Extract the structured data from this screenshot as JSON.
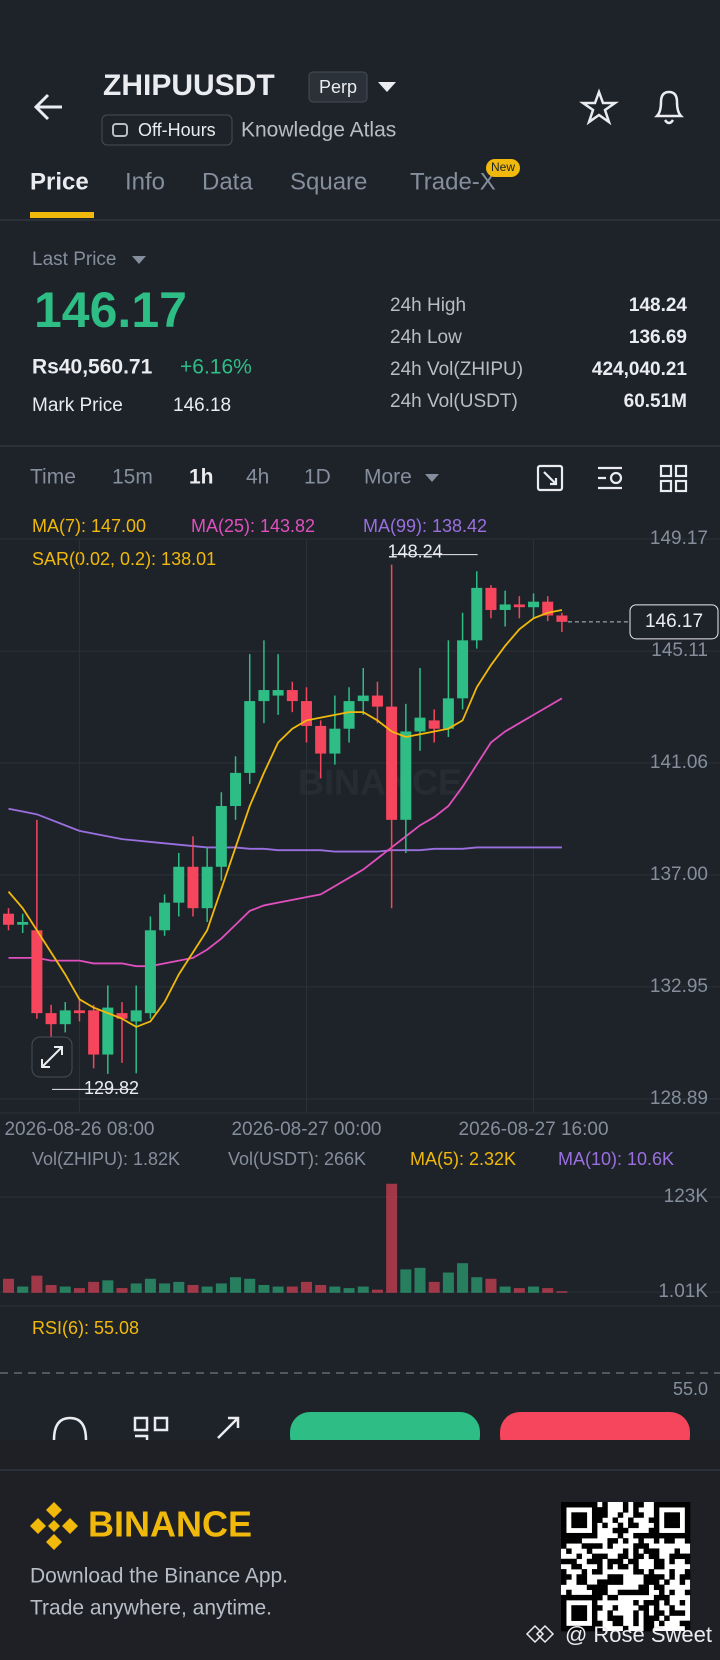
{
  "header": {
    "symbol": "ZHIPUUSDT",
    "contract": "Perp",
    "status": "Off-Hours",
    "name": "Knowledge Atlas"
  },
  "tabs": [
    "Price",
    "Info",
    "Data",
    "Square",
    "Trade-X"
  ],
  "tab_badge": "New",
  "price": {
    "label": "Last Price",
    "last": "146.17",
    "local": "Rs40,560.71",
    "change": "+6.16%",
    "mark_label": "Mark Price",
    "mark": "146.18"
  },
  "stats": [
    {
      "label": "24h High",
      "value": "148.24"
    },
    {
      "label": "24h Low",
      "value": "136.69"
    },
    {
      "label": "24h Vol(ZHIPU)",
      "value": "424,040.21"
    },
    {
      "label": "24h Vol(USDT)",
      "value": "60.51M"
    }
  ],
  "intervals": [
    "Time",
    "15m",
    "1h",
    "4h",
    "1D",
    "More"
  ],
  "chart_data": {
    "type": "candlestick",
    "indicators": [
      "MA(7): 147.00",
      "MA(25): 143.82",
      "MA(99): 138.42",
      "SAR(0.02, 0.2): 138.01"
    ],
    "watermark": "BINANCE",
    "ylim": [
      128.89,
      149.17
    ],
    "yticks": [
      149.17,
      145.11,
      141.06,
      {
        "value": 137,
        "label": "137.00"
      },
      132.95,
      128.89
    ],
    "x_labels": [
      "2026-08-26 08:00",
      "2026-08-27 00:00",
      "2026-08-27 16:00"
    ],
    "high_label": 148.24,
    "low_label": 129.82,
    "current": 146.17,
    "candles": [
      {
        "open": 135.6,
        "high": 135.8,
        "low": 135.0,
        "close": 135.2
      },
      {
        "open": 135.2,
        "high": 135.6,
        "low": 134.9,
        "close": 135.3
      },
      {
        "open": 135.0,
        "high": 139.0,
        "low": 131.8,
        "close": 132.0
      },
      {
        "open": 132.0,
        "high": 132.3,
        "low": 131.0,
        "close": 131.6
      },
      {
        "open": 131.6,
        "high": 132.4,
        "low": 131.3,
        "close": 132.1
      },
      {
        "open": 132.1,
        "high": 132.5,
        "low": 131.7,
        "close": 132.0
      },
      {
        "open": 132.1,
        "high": 132.3,
        "low": 130.0,
        "close": 130.5
      },
      {
        "open": 130.5,
        "high": 133.0,
        "low": 129.8,
        "close": 132.2
      },
      {
        "open": 132.0,
        "high": 132.4,
        "low": 130.2,
        "close": 131.8
      },
      {
        "open": 131.7,
        "high": 133.0,
        "low": 129.82,
        "close": 132.1
      },
      {
        "open": 132.0,
        "high": 135.5,
        "low": 131.8,
        "close": 135.0
      },
      {
        "open": 135.0,
        "high": 136.3,
        "low": 134.8,
        "close": 136.0
      },
      {
        "open": 136.0,
        "high": 137.8,
        "low": 135.5,
        "close": 137.3
      },
      {
        "open": 137.3,
        "high": 138.4,
        "low": 135.5,
        "close": 135.8
      },
      {
        "open": 135.8,
        "high": 138.0,
        "low": 135.3,
        "close": 137.3
      },
      {
        "open": 137.3,
        "high": 140.0,
        "low": 136.8,
        "close": 139.5
      },
      {
        "open": 139.5,
        "high": 141.3,
        "low": 139.0,
        "close": 140.7
      },
      {
        "open": 140.7,
        "high": 145.0,
        "low": 140.3,
        "close": 143.3
      },
      {
        "open": 143.3,
        "high": 145.5,
        "low": 142.5,
        "close": 143.7
      },
      {
        "open": 143.5,
        "high": 145.0,
        "low": 142.8,
        "close": 143.7
      },
      {
        "open": 143.7,
        "high": 144.0,
        "low": 142.9,
        "close": 143.3
      },
      {
        "open": 143.3,
        "high": 143.8,
        "low": 141.8,
        "close": 142.4
      },
      {
        "open": 142.4,
        "high": 142.6,
        "low": 140.5,
        "close": 141.4
      },
      {
        "open": 141.4,
        "high": 143.5,
        "low": 141.0,
        "close": 142.3
      },
      {
        "open": 142.3,
        "high": 143.8,
        "low": 141.8,
        "close": 143.3
      },
      {
        "open": 143.3,
        "high": 144.5,
        "low": 142.8,
        "close": 143.5
      },
      {
        "open": 143.5,
        "high": 144.0,
        "low": 142.5,
        "close": 143.1
      },
      {
        "open": 143.1,
        "high": 148.24,
        "low": 135.8,
        "close": 139.0
      },
      {
        "open": 139.0,
        "high": 143.2,
        "low": 137.8,
        "close": 142.2
      },
      {
        "open": 142.2,
        "high": 144.5,
        "low": 141.5,
        "close": 142.7
      },
      {
        "open": 142.6,
        "high": 143.0,
        "low": 141.8,
        "close": 142.3
      },
      {
        "open": 142.3,
        "high": 145.5,
        "low": 142.0,
        "close": 143.4
      },
      {
        "open": 143.4,
        "high": 146.5,
        "low": 143.0,
        "close": 145.5
      },
      {
        "open": 145.5,
        "high": 148.0,
        "low": 145.2,
        "close": 147.4
      },
      {
        "open": 147.4,
        "high": 147.5,
        "low": 146.3,
        "close": 146.6
      },
      {
        "open": 146.6,
        "high": 147.3,
        "low": 146.0,
        "close": 146.8
      },
      {
        "open": 146.8,
        "high": 147.1,
        "low": 146.3,
        "close": 146.7
      },
      {
        "open": 146.7,
        "high": 147.2,
        "low": 146.3,
        "close": 146.9
      },
      {
        "open": 146.9,
        "high": 147.1,
        "low": 146.2,
        "close": 146.4
      },
      {
        "open": 146.4,
        "high": 146.5,
        "low": 145.8,
        "close": 146.17
      }
    ],
    "ma7": [
      136.4,
      135.8,
      135.0,
      134.2,
      133.4,
      132.5,
      132.2,
      132.0,
      131.8,
      131.5,
      131.7,
      132.4,
      133.4,
      134.2,
      135.0,
      136.5,
      138.0,
      139.5,
      140.7,
      141.8,
      142.3,
      142.6,
      142.7,
      142.8,
      142.9,
      142.9,
      142.6,
      142.2,
      142.0,
      142.1,
      142.2,
      142.3,
      142.6,
      143.8,
      144.6,
      145.3,
      145.9,
      146.3,
      146.5,
      146.6
    ],
    "ma25": [
      134.0,
      134.0,
      134.0,
      133.9,
      133.9,
      133.9,
      133.8,
      133.8,
      133.8,
      133.7,
      133.7,
      133.8,
      133.9,
      134.0,
      134.3,
      134.7,
      135.2,
      135.7,
      135.9,
      136.0,
      136.1,
      136.2,
      136.3,
      136.6,
      136.9,
      137.2,
      137.6,
      138.0,
      138.4,
      138.8,
      139.1,
      139.5,
      140.2,
      141.0,
      141.8,
      142.2,
      142.5,
      142.8,
      143.1,
      143.4
    ],
    "ma99": [
      139.4,
      139.3,
      139.2,
      139.0,
      138.8,
      138.6,
      138.5,
      138.4,
      138.3,
      138.25,
      138.2,
      138.15,
      138.1,
      138.05,
      138.0,
      138.0,
      138.0,
      137.95,
      137.95,
      137.9,
      137.9,
      137.9,
      137.9,
      137.85,
      137.85,
      137.85,
      137.85,
      137.9,
      137.9,
      137.9,
      137.95,
      137.95,
      137.95,
      138.0,
      138.0,
      138.0,
      138.0,
      138.0,
      138.0,
      138.0
    ]
  },
  "volume": {
    "legend": [
      "Vol(ZHIPU): 1.82K",
      "Vol(USDT): 266K",
      "MA(5): 2.32K",
      "MA(10): 10.6K"
    ],
    "yticks": [
      {
        "value": 123,
        "label": "123K"
      },
      {
        "value": 1.01,
        "label": "1.01K"
      }
    ],
    "values": [
      18,
      8,
      22,
      10,
      8,
      6,
      14,
      16,
      6,
      12,
      18,
      12,
      14,
      10,
      8,
      12,
      20,
      18,
      10,
      8,
      8,
      14,
      10,
      8,
      6,
      8,
      4,
      140,
      30,
      32,
      14,
      26,
      38,
      20,
      18,
      8,
      6,
      8,
      6,
      2
    ]
  },
  "rsi": {
    "legend": "RSI(6): 55.08",
    "tick": "55.0"
  },
  "footer": {
    "brand": "BINANCE",
    "line1": "Download the Binance App.",
    "line2": "Trade anywhere, anytime.",
    "watermark": "@ Rose Sweet"
  }
}
